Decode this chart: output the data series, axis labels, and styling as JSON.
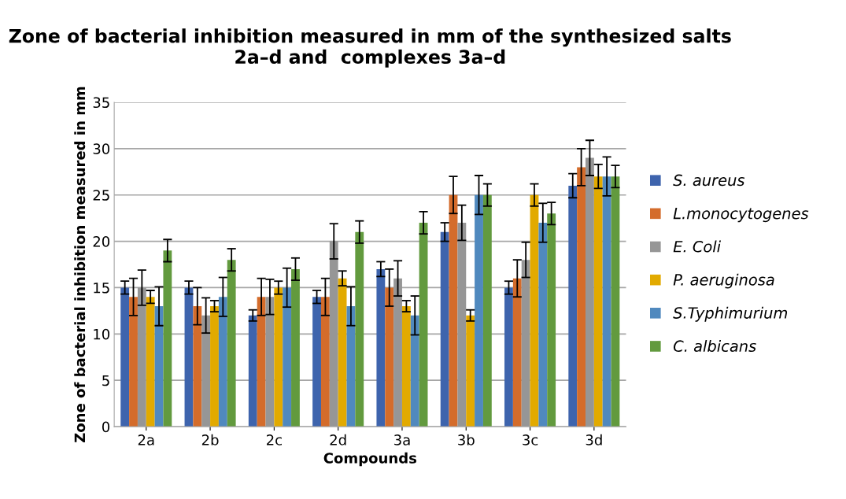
{
  "chart_data": {
    "type": "bar",
    "title": "Zone of bacterial inhibition measured in mm of the synthesized salts 2a–d and  complexes 3a–d",
    "xlabel": "Compounds",
    "ylabel": "Zone of bacterial inhibition measured in mm",
    "categories": [
      "2a",
      "2b",
      "2c",
      "2d",
      "3a",
      "3b",
      "3c",
      "3d"
    ],
    "series": [
      {
        "name": "S. aureus",
        "color": "#3e64ad",
        "values": [
          15,
          15,
          12,
          14,
          17,
          21,
          15,
          26
        ],
        "errors": [
          0.7,
          0.7,
          0.6,
          0.7,
          0.8,
          1,
          0.7,
          1.3
        ]
      },
      {
        "name": "L.monocytogenes",
        "color": "#d46c2b",
        "values": [
          14,
          13,
          14,
          14,
          15,
          25,
          16,
          28
        ],
        "errors": [
          2,
          2,
          2,
          2,
          2,
          2,
          2,
          2
        ]
      },
      {
        "name": "E. Coli",
        "color": "#969696",
        "values": [
          15,
          12,
          14,
          20,
          16,
          22,
          18,
          29
        ],
        "errors": [
          1.9,
          1.9,
          1.9,
          1.9,
          1.9,
          1.9,
          1.9,
          1.9
        ]
      },
      {
        "name": "P. aeruginosa",
        "color": "#e2aa00",
        "values": [
          14,
          13,
          15,
          16,
          13,
          12,
          25,
          27
        ],
        "errors": [
          0.7,
          0.6,
          0.7,
          0.8,
          0.6,
          0.6,
          1.2,
          1.3
        ]
      },
      {
        "name": "S.Typhimurium",
        "color": "#5089be",
        "values": [
          13,
          14,
          15,
          13,
          12,
          25,
          22,
          27
        ],
        "errors": [
          2.1,
          2.1,
          2.1,
          2.1,
          2.1,
          2.1,
          2.1,
          2.1
        ]
      },
      {
        "name": "C. albicans",
        "color": "#629a3e",
        "values": [
          19,
          18,
          17,
          21,
          22,
          25,
          23,
          27
        ],
        "errors": [
          1.2,
          1.2,
          1.2,
          1.2,
          1.2,
          1.2,
          1.2,
          1.2
        ]
      }
    ],
    "ylim": [
      0,
      35
    ],
    "yticks": [
      0,
      5,
      10,
      15,
      20,
      25,
      30,
      35
    ],
    "grid": "y",
    "legend": "right"
  }
}
